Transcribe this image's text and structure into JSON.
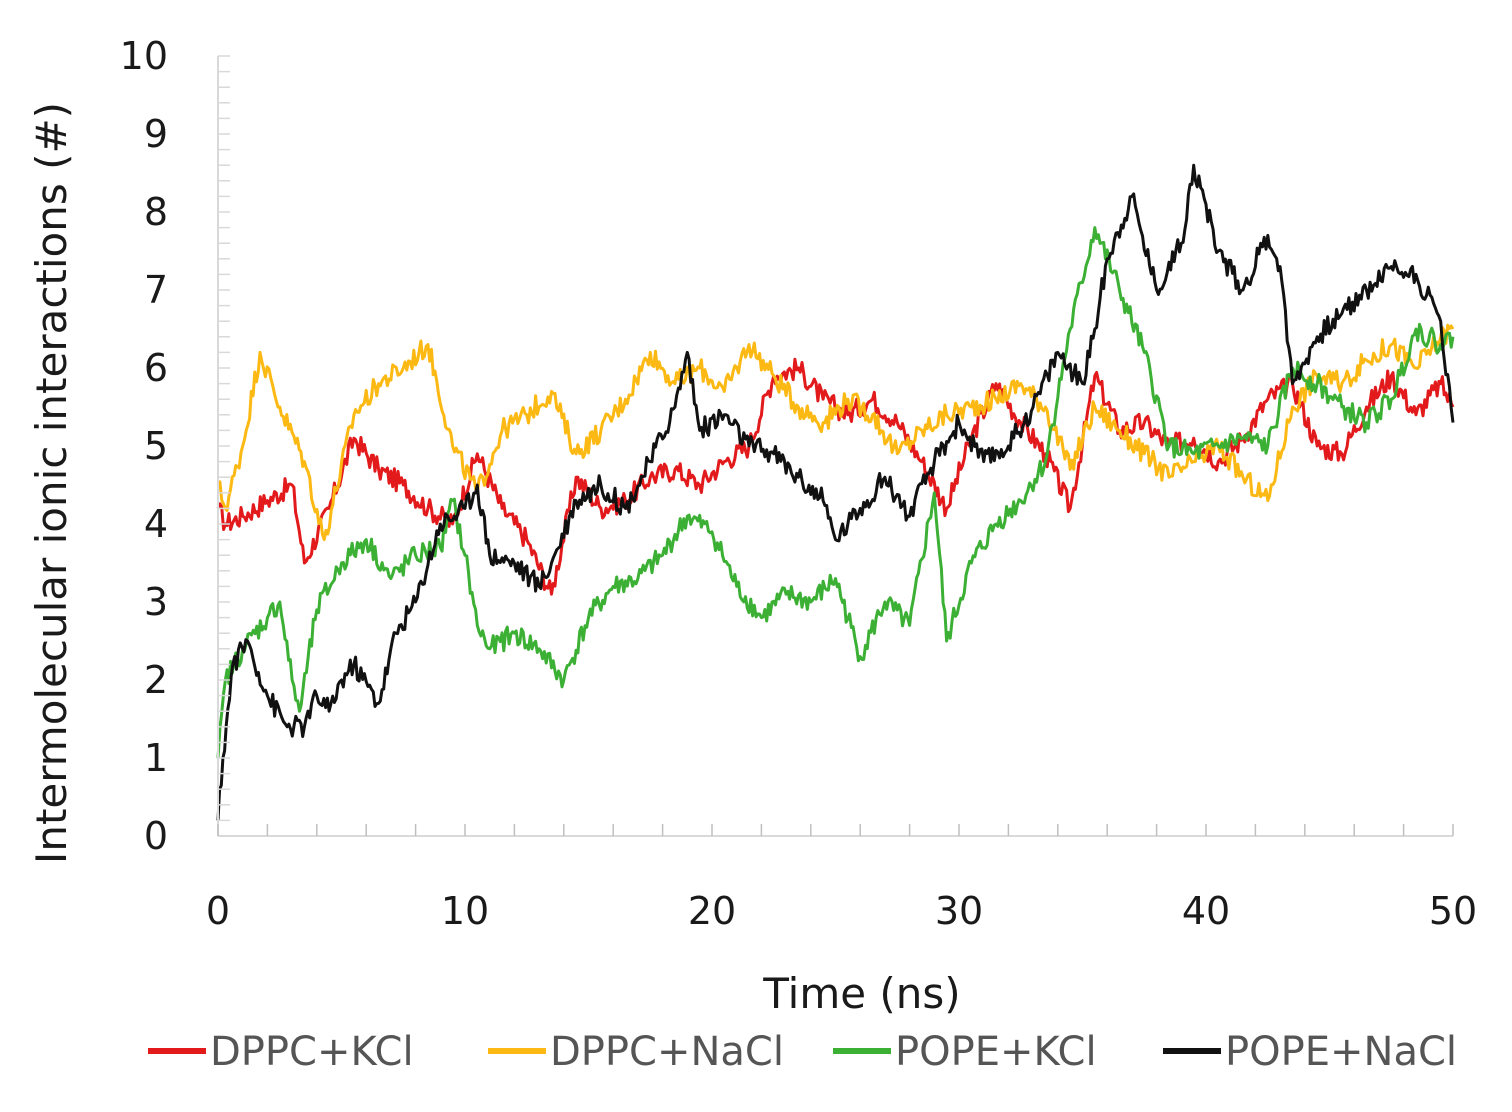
{
  "chart_data": {
    "type": "line",
    "title": "",
    "xlabel": "Time (ns)",
    "ylabel": "Intermolecular ionic interactions (#)",
    "xlim": [
      0,
      50
    ],
    "ylim": [
      0,
      10
    ],
    "xticks": [
      0,
      10,
      20,
      30,
      40,
      50
    ],
    "yticks": [
      0,
      1,
      2,
      3,
      4,
      5,
      6,
      7,
      8,
      9,
      10
    ],
    "grid": false,
    "legend_position": "bottom",
    "series": [
      {
        "name": "DPPC+KCl",
        "color": "#e31a1c",
        "x": [
          0,
          0.3,
          1,
          2,
          3,
          3.5,
          4.5,
          5.5,
          6.5,
          7.5,
          8.5,
          9.5,
          10.5,
          11.5,
          12.5,
          13.5,
          14.5,
          15.5,
          16.5,
          17.5,
          18.5,
          19.5,
          20.5,
          21.5,
          22.5,
          23.5,
          24.5,
          25.5,
          26.5,
          27.5,
          28.5,
          29.5,
          30.5,
          31.5,
          32.5,
          33.5,
          34.5,
          35.5,
          36.5,
          37.5,
          38.5,
          39.5,
          40.5,
          41.5,
          42.5,
          43.5,
          44.5,
          45.5,
          46.5,
          47.5,
          48.5,
          49.5,
          50
        ],
        "y": [
          4.2,
          4.0,
          4.1,
          4.3,
          4.5,
          3.5,
          4.2,
          5.1,
          4.7,
          4.5,
          4.2,
          4.0,
          4.9,
          4.2,
          3.8,
          3.1,
          4.6,
          4.2,
          4.3,
          4.6,
          4.7,
          4.5,
          4.8,
          5.0,
          5.9,
          6.0,
          5.6,
          5.4,
          5.6,
          5.3,
          4.8,
          4.2,
          5.1,
          5.8,
          5.3,
          4.9,
          4.2,
          5.9,
          5.2,
          5.3,
          5.0,
          5.1,
          4.8,
          5.1,
          5.6,
          5.8,
          5.0,
          4.9,
          5.5,
          5.9,
          5.4,
          5.8,
          5.5
        ]
      },
      {
        "name": "DPPC+NaCl",
        "color": "#fdb913",
        "x": [
          0,
          0.3,
          1,
          1.7,
          2.5,
          3.5,
          4.3,
          5.5,
          6.5,
          7.5,
          8.5,
          9.5,
          10.5,
          11.5,
          12.5,
          13.5,
          14.5,
          15.5,
          16.5,
          17.5,
          18.5,
          19.5,
          20.5,
          21.5,
          22.5,
          23.5,
          24.5,
          25.5,
          26.5,
          27.5,
          28.5,
          29.5,
          30.5,
          31.5,
          32.5,
          33.5,
          34.5,
          35.5,
          36.5,
          37.5,
          38.5,
          39.5,
          40.5,
          41.5,
          42.5,
          43.5,
          44.5,
          45.5,
          46.5,
          47.5,
          48.5,
          49.5,
          50
        ],
        "y": [
          4.5,
          4.2,
          5.0,
          6.2,
          5.5,
          4.8,
          3.8,
          5.4,
          5.8,
          6.0,
          6.3,
          5.0,
          4.4,
          5.2,
          5.4,
          5.7,
          4.9,
          5.2,
          5.6,
          6.2,
          5.8,
          6.0,
          5.7,
          6.3,
          5.9,
          5.5,
          5.3,
          5.6,
          5.4,
          4.9,
          5.2,
          5.4,
          5.5,
          5.6,
          5.8,
          5.5,
          4.7,
          5.5,
          5.2,
          4.9,
          4.6,
          4.8,
          5.0,
          4.6,
          4.3,
          5.5,
          5.9,
          5.8,
          6.1,
          6.3,
          6.0,
          6.4,
          6.5
        ]
      },
      {
        "name": "POPE+KCl",
        "color": "#3cb034",
        "x": [
          0,
          0.3,
          1,
          2,
          2.5,
          3,
          3.3,
          4,
          5,
          6,
          7,
          8,
          9,
          9.5,
          10,
          10.5,
          11,
          12,
          13,
          14,
          15,
          16,
          17,
          18,
          19,
          20,
          21,
          22,
          23,
          24,
          25,
          26,
          27,
          28,
          29,
          29.5,
          30.5,
          31.5,
          32.5,
          33.5,
          34.5,
          35.5,
          36.5,
          37.5,
          38.5,
          39.5,
          40.5,
          41.5,
          42.5,
          43.5,
          44.5,
          45.5,
          46.5,
          47.5,
          48.5,
          49.5,
          50
        ],
        "y": [
          1.0,
          2.0,
          2.4,
          2.8,
          3.0,
          2.0,
          1.6,
          2.9,
          3.5,
          3.8,
          3.3,
          3.6,
          3.7,
          4.3,
          3.6,
          2.7,
          2.4,
          2.6,
          2.4,
          2.0,
          2.8,
          3.2,
          3.3,
          3.6,
          4.1,
          3.9,
          3.2,
          2.8,
          3.1,
          3.0,
          3.3,
          2.3,
          3.0,
          2.7,
          4.4,
          2.5,
          3.5,
          4.0,
          4.3,
          4.8,
          6.5,
          7.8,
          7.0,
          6.2,
          5.0,
          4.9,
          5.0,
          5.1,
          5.0,
          6.0,
          5.8,
          5.5,
          5.3,
          5.6,
          6.5,
          6.3,
          6.4
        ]
      },
      {
        "name": "POPE+NaCl",
        "color": "#111111",
        "x": [
          0,
          0.2,
          0.6,
          1.2,
          2,
          2.8,
          3.5,
          4,
          4.5,
          5,
          5.5,
          6.5,
          7.2,
          8,
          9,
          10,
          10.5,
          11,
          12,
          13,
          13.5,
          14.5,
          15.5,
          16.5,
          17.5,
          18.5,
          19,
          19.5,
          20.5,
          21.5,
          22.5,
          23.5,
          24.5,
          25,
          26,
          27,
          28,
          29,
          30,
          31,
          32,
          33,
          34,
          35,
          35.5,
          36,
          37,
          38,
          39,
          39.5,
          40.5,
          41.5,
          42.5,
          43,
          43.5,
          44.5,
          45.5,
          46.5,
          47.5,
          48.5,
          49.5,
          50
        ],
        "y": [
          0.2,
          1.0,
          2.2,
          2.5,
          1.8,
          1.4,
          1.4,
          1.8,
          1.6,
          2.0,
          2.2,
          1.7,
          2.6,
          3.0,
          4.0,
          4.2,
          4.5,
          3.6,
          3.5,
          3.2,
          3.5,
          4.3,
          4.5,
          4.2,
          4.8,
          5.5,
          6.2,
          5.2,
          5.4,
          5.0,
          4.9,
          4.6,
          4.3,
          3.8,
          4.2,
          4.6,
          4.1,
          4.8,
          5.3,
          4.8,
          5.0,
          5.5,
          6.2,
          5.8,
          6.5,
          7.4,
          8.2,
          7.0,
          7.6,
          8.6,
          7.5,
          7.0,
          7.7,
          7.3,
          5.8,
          6.4,
          6.7,
          7.0,
          7.3,
          7.2,
          6.6,
          5.3
        ]
      }
    ]
  }
}
